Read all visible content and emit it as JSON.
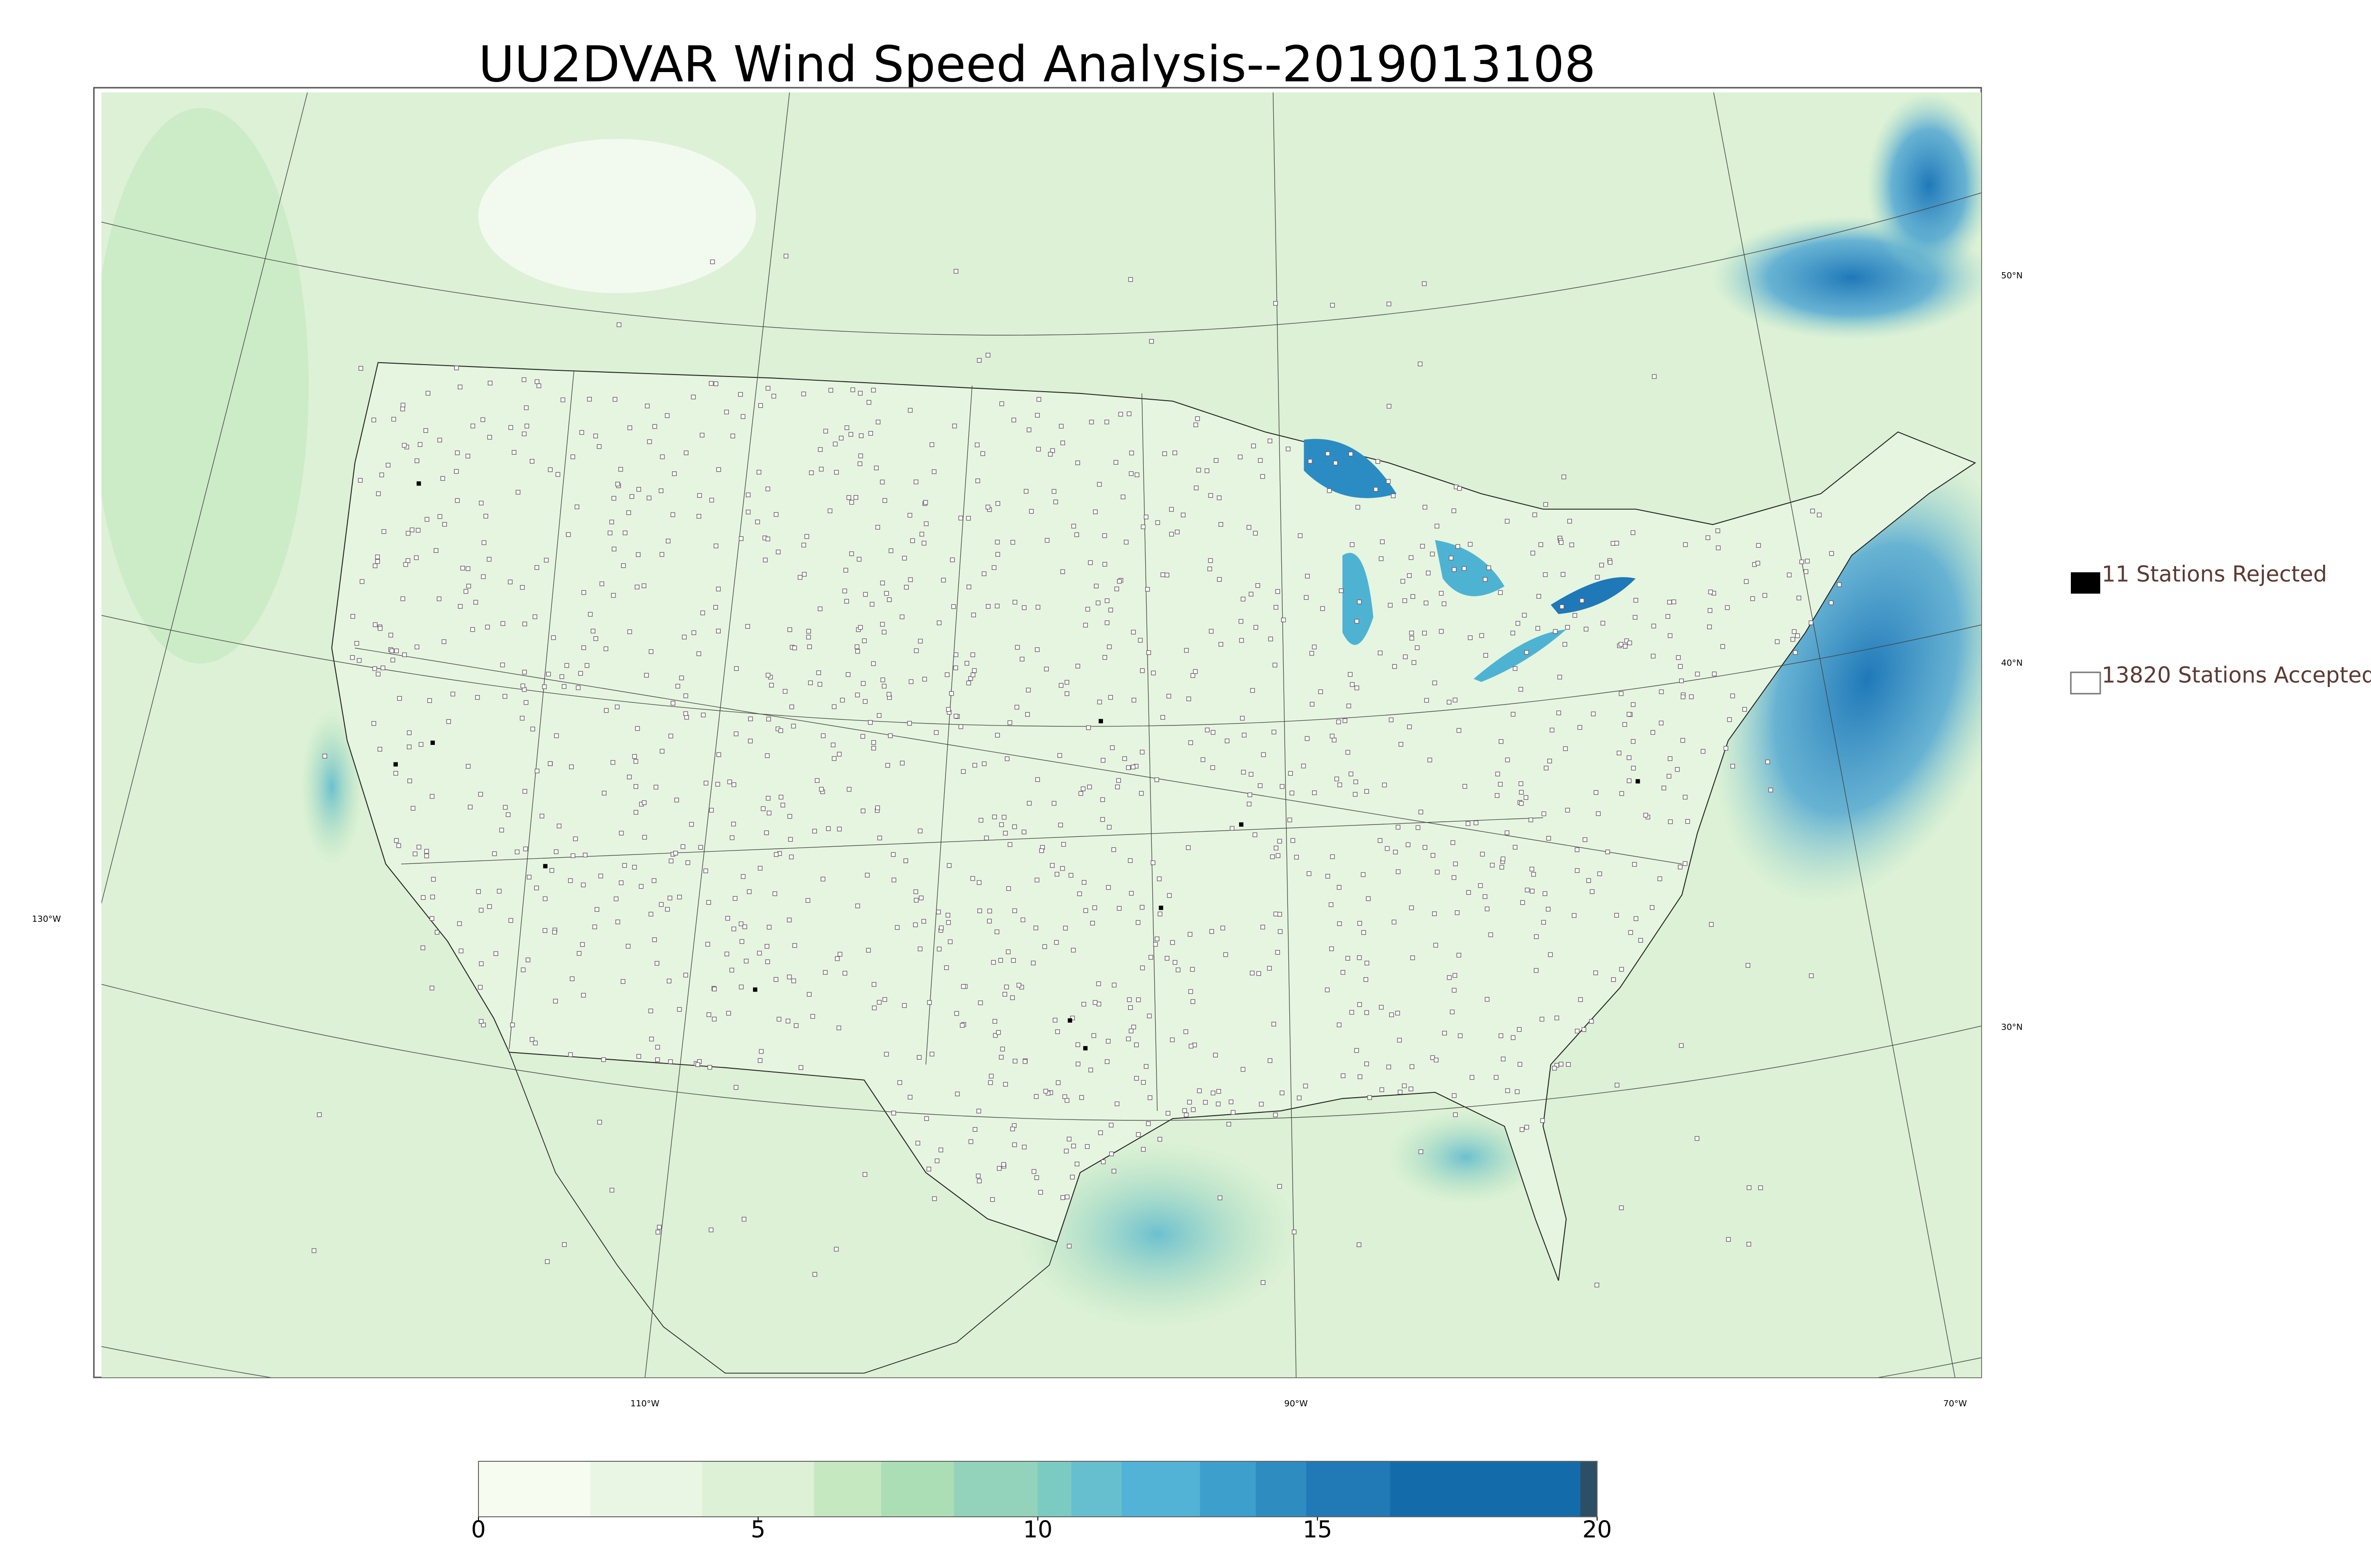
{
  "title": "UU2DVAR Wind Speed Analysis--2019013108",
  "legend": [
    {
      "label": "11 Stations Rejected"
    },
    {
      "label": "13820 Stations Accepted"
    }
  ],
  "colorbar": {
    "lim": [
      0,
      20
    ],
    "ticks": [
      0,
      5,
      10,
      15,
      20
    ],
    "bounds": [
      0,
      2,
      4,
      6,
      7.2,
      8.5,
      10,
      10.6,
      11.5,
      12.9,
      13.9,
      14.8,
      16.3,
      19.7,
      20
    ],
    "colors": [
      "#f7fcf0",
      "#e9f6e3",
      "#dcf1d5",
      "#c5e8c0",
      "#acdeb6",
      "#93d3bb",
      "#7ccbc3",
      "#66bfcf",
      "#52b3d6",
      "#3d9fcc",
      "#2e8cc0",
      "#2179b5",
      "#146ba9",
      "#2c4f66"
    ]
  },
  "graticule": {
    "lat_labels": [
      "50°N",
      "40°N",
      "30°N"
    ],
    "lon_labels": [
      "130°W",
      "110°W",
      "90°W",
      "70°W"
    ]
  }
}
